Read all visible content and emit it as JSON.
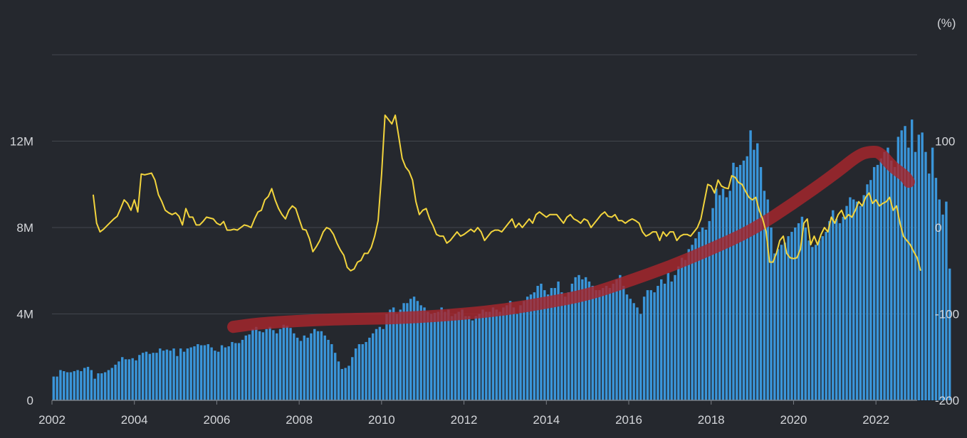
{
  "chart_data": {
    "type": "bar+line",
    "title": "",
    "xlabel": "",
    "ylabel_left": "",
    "ylabel_right": "(%)",
    "grid": true,
    "x_ticks": [
      "2002",
      "2004",
      "2006",
      "2008",
      "2010",
      "2012",
      "2014",
      "2016",
      "2018",
      "2020",
      "2022"
    ],
    "x_range": [
      2002,
      2023
    ],
    "y_left": {
      "ticks": [
        "0",
        "4M",
        "8M",
        "12M"
      ],
      "tick_values": [
        0,
        4000000,
        8000000,
        12000000
      ],
      "range": [
        0,
        16000000
      ]
    },
    "y_right": {
      "ticks": [
        "-200",
        "-100",
        "0",
        "100"
      ],
      "tick_values": [
        -200,
        -100,
        0,
        100
      ],
      "range": [
        -200,
        200
      ]
    },
    "colors": {
      "bars": "#3a95d9",
      "line": "#f2d43d",
      "trend_annotation": "#a8262c",
      "background": "#25282e",
      "grid": "#42464d",
      "text": "#d4d6da"
    },
    "series": [
      {
        "kind": "bar",
        "axis": "left",
        "x_start": "2002-01",
        "frequency": "monthly",
        "values": [
          1100000,
          1100000,
          1400000,
          1350000,
          1300000,
          1300000,
          1350000,
          1400000,
          1350000,
          1500000,
          1550000,
          1400000,
          1000000,
          1250000,
          1250000,
          1300000,
          1400000,
          1500000,
          1650000,
          1800000,
          2000000,
          1900000,
          1900000,
          1950000,
          1850000,
          2100000,
          2200000,
          2250000,
          2150000,
          2200000,
          2200000,
          2400000,
          2300000,
          2350000,
          2300000,
          2400000,
          2050000,
          2400000,
          2250000,
          2400000,
          2450000,
          2500000,
          2600000,
          2550000,
          2550000,
          2600000,
          2450000,
          2300000,
          2250000,
          2550000,
          2450000,
          2500000,
          2700000,
          2650000,
          2650000,
          2800000,
          3000000,
          3050000,
          3300000,
          3400000,
          3200000,
          3150000,
          3300000,
          3400000,
          3250000,
          3100000,
          3300000,
          3500000,
          3450000,
          3350000,
          3100000,
          2900000,
          2750000,
          3000000,
          2900000,
          3100000,
          3300000,
          3200000,
          3200000,
          3000000,
          2800000,
          2600000,
          2200000,
          1800000,
          1450000,
          1500000,
          1600000,
          2000000,
          2400000,
          2600000,
          2600000,
          2700000,
          2900000,
          3100000,
          3300000,
          3400000,
          3300000,
          4000000,
          4200000,
          4300000,
          4000000,
          4200000,
          4500000,
          4500000,
          4700000,
          4800000,
          4600000,
          4400000,
          4300000,
          4100000,
          4000000,
          4050000,
          4100000,
          4300000,
          4100000,
          4200000,
          3900000,
          4000000,
          4100000,
          4200000,
          3900000,
          3900000,
          3700000,
          3900000,
          4000000,
          4200000,
          4100000,
          4100000,
          4300000,
          4200000,
          4100000,
          4300000,
          4400000,
          4600000,
          4300000,
          4000000,
          4400000,
          4600000,
          4800000,
          4900000,
          5000000,
          5300000,
          5400000,
          5100000,
          4900000,
          5200000,
          5200000,
          5500000,
          5000000,
          4800000,
          5000000,
          5400000,
          5700000,
          5800000,
          5600000,
          5700000,
          5500000,
          5300000,
          5100000,
          5100000,
          5200000,
          5300000,
          5200000,
          5400000,
          5600000,
          5800000,
          5300000,
          4900000,
          4700000,
          4500000,
          4300000,
          4000000,
          4800000,
          5100000,
          5100000,
          5000000,
          5300000,
          5600000,
          5400000,
          5900000,
          5500000,
          5800000,
          6200000,
          6600000,
          6500000,
          7000000,
          7200000,
          7500000,
          7800000,
          8000000,
          7900000,
          8300000,
          8900000,
          9800000,
          9500000,
          9800000,
          9400000,
          9700000,
          11000000,
          10800000,
          10900000,
          11100000,
          11300000,
          12500000,
          11600000,
          11900000,
          10800000,
          9700000,
          9300000,
          8000000,
          6800000,
          7000000,
          7200000,
          7300000,
          7600000,
          7800000,
          8000000,
          8200000,
          8500000,
          8000000,
          7400000,
          7100000,
          7200000,
          7400000,
          7600000,
          7800000,
          8300000,
          8800000,
          8400000,
          8200000,
          8500000,
          9000000,
          9400000,
          9300000,
          9200000,
          9000000,
          9500000,
          10000000,
          10200000,
          10800000,
          10900000,
          11200000,
          11500000,
          11700000,
          11100000,
          10800000,
          12200000,
          12500000,
          12700000,
          11700000,
          13000000,
          11500000,
          12300000,
          12400000,
          11500000,
          10500000,
          11700000,
          10300000,
          9300000,
          8600000,
          9200000,
          6100000
        ]
      },
      {
        "kind": "line",
        "axis": "right",
        "x_start": "2003-01",
        "frequency": "monthly",
        "values": [
          38,
          5,
          -5,
          -2,
          2,
          6,
          10,
          13,
          22,
          32,
          28,
          20,
          32,
          18,
          62,
          61,
          62,
          63,
          55,
          38,
          30,
          20,
          17,
          15,
          17,
          13,
          3,
          22,
          12,
          12,
          3,
          3,
          7,
          12,
          11,
          10,
          5,
          3,
          7,
          -3,
          -3,
          -2,
          -3,
          0,
          3,
          2,
          0,
          10,
          18,
          20,
          32,
          36,
          45,
          32,
          22,
          15,
          10,
          20,
          25,
          22,
          10,
          -2,
          -3,
          -13,
          -28,
          -22,
          -15,
          -5,
          0,
          -2,
          -8,
          -18,
          -26,
          -32,
          -46,
          -50,
          -48,
          -40,
          -38,
          -30,
          -30,
          -23,
          -10,
          8,
          62,
          130,
          125,
          120,
          130,
          105,
          80,
          70,
          65,
          55,
          30,
          15,
          20,
          22,
          10,
          2,
          -8,
          -10,
          -10,
          -18,
          -15,
          -10,
          -5,
          -10,
          -8,
          -5,
          -2,
          -5,
          0,
          -5,
          -15,
          -10,
          -5,
          -3,
          -3,
          -5,
          0,
          5,
          10,
          0,
          5,
          0,
          5,
          10,
          5,
          15,
          18,
          15,
          12,
          15,
          15,
          15,
          10,
          5,
          12,
          15,
          10,
          8,
          5,
          10,
          8,
          0,
          5,
          10,
          15,
          18,
          13,
          12,
          15,
          8,
          8,
          5,
          8,
          10,
          8,
          5,
          -5,
          -10,
          -8,
          -5,
          -5,
          -15,
          -5,
          -10,
          -5,
          -5,
          -15,
          -10,
          -8,
          -8,
          -10,
          -5,
          0,
          10,
          30,
          50,
          48,
          40,
          55,
          48,
          46,
          45,
          60,
          58,
          52,
          50,
          42,
          35,
          32,
          35,
          20,
          10,
          -5,
          -40,
          -40,
          -30,
          -15,
          -10,
          -30,
          -35,
          -36,
          -35,
          -25,
          5,
          10,
          -20,
          -10,
          -20,
          -8,
          0,
          -5,
          12,
          5,
          15,
          20,
          10,
          15,
          12,
          20,
          30,
          25,
          35,
          40,
          28,
          32,
          25,
          28,
          30,
          35,
          20,
          25,
          5,
          -10,
          -15,
          -20,
          -28,
          -35,
          -50
        ]
      }
    ],
    "annotations": [
      {
        "kind": "hand-drawn trend curve",
        "points": [
          [
            2006.4,
            -115
          ],
          [
            2007,
            -111
          ],
          [
            2008,
            -108
          ],
          [
            2009,
            -106
          ],
          [
            2010.5,
            -105
          ],
          [
            2012,
            -100
          ],
          [
            2013,
            -95
          ],
          [
            2014,
            -87
          ],
          [
            2015,
            -78
          ],
          [
            2016,
            -62
          ],
          [
            2017,
            -45
          ],
          [
            2018,
            -25
          ],
          [
            2019,
            -3
          ],
          [
            2020,
            28
          ],
          [
            2021,
            62
          ],
          [
            2021.6,
            85
          ],
          [
            2021.9,
            88
          ],
          [
            2022.1,
            87
          ],
          [
            2022.4,
            70
          ],
          [
            2022.7,
            60
          ],
          [
            2022.8,
            53
          ]
        ]
      }
    ]
  }
}
